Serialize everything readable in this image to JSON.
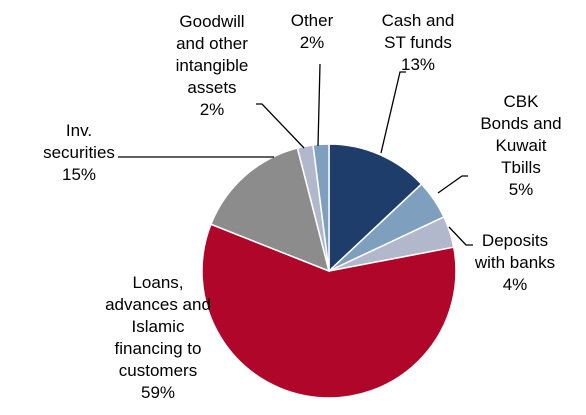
{
  "chart_data": {
    "type": "pie",
    "title": "",
    "slices": [
      {
        "lines": [
          "Cash and",
          "ST funds",
          "13%"
        ],
        "value": 13,
        "color": "#1f3d6b"
      },
      {
        "lines": [
          "CBK",
          "Bonds and",
          "Kuwait",
          "Tbills",
          "5%"
        ],
        "value": 5,
        "color": "#7f9fbf"
      },
      {
        "lines": [
          "Deposits",
          "with banks",
          "4%"
        ],
        "value": 4,
        "color": "#b2b8cc"
      },
      {
        "lines": [
          "Loans,",
          "advances and",
          "Islamic",
          "financing to",
          "customers",
          "59%"
        ],
        "value": 59,
        "color": "#b0062a"
      },
      {
        "lines": [
          "Inv.",
          "securities",
          "15%"
        ],
        "value": 15,
        "color": "#8c8c8c"
      },
      {
        "lines": [
          "Goodwill",
          "and other",
          "intangible",
          "assets",
          "2%"
        ],
        "value": 2,
        "color": "#b2b8cc"
      },
      {
        "lines": [
          "Other",
          "2%"
        ],
        "value": 2,
        "color": "#7f9fbf"
      }
    ],
    "legend": "none",
    "label_placement": "outside-with-leader-lines"
  }
}
